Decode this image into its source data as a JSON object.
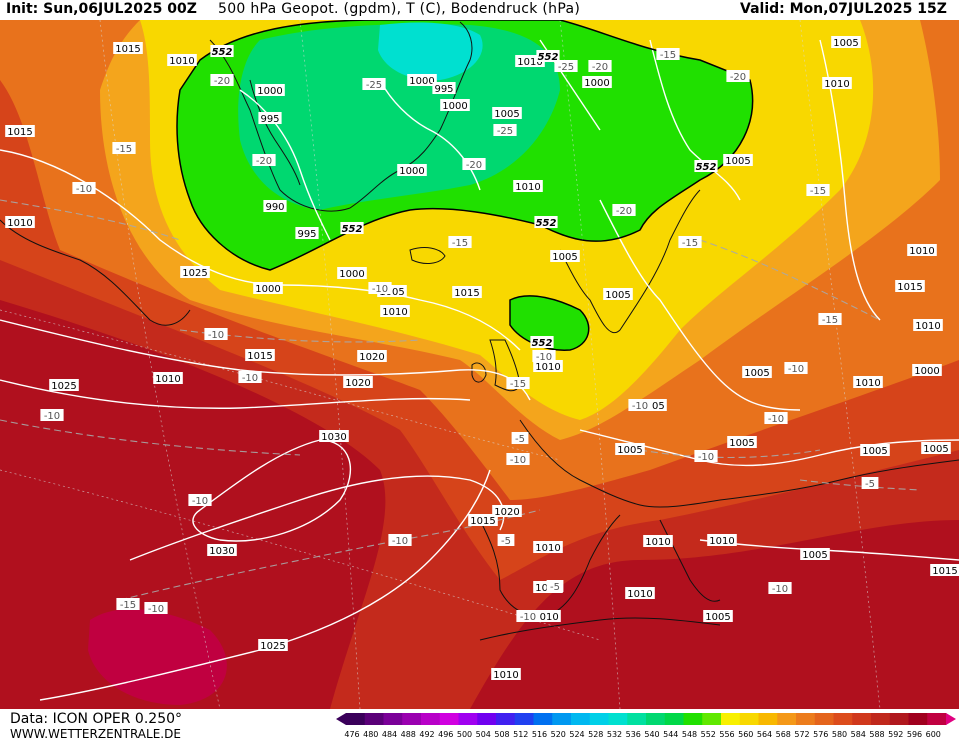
{
  "header": {
    "init": "Init: Sun,06JUL2025 00Z",
    "title": "500 hPa Geopot. (gpdm), T (C), Bodendruck (hPa)",
    "valid": "Valid: Mon,07JUL2025 15Z"
  },
  "footer": {
    "data_source": "Data: ICON OPER 0.250°",
    "website": "WWW.WETTERZENTRALE.DE"
  },
  "colors": {
    "deep_red": "#a0001e",
    "red": "#c0281c",
    "orange_red": "#d8481a",
    "orange": "#e8721c",
    "light_orange": "#f4a51c",
    "yellow": "#f8d800",
    "light_green": "#22e000",
    "cyan": "#00e0d0"
  },
  "legend": {
    "values": [
      "476",
      "480",
      "484",
      "488",
      "492",
      "496",
      "500",
      "504",
      "508",
      "512",
      "516",
      "520",
      "524",
      "528",
      "532",
      "536",
      "540",
      "544",
      "548",
      "552",
      "556",
      "560",
      "564",
      "568",
      "572",
      "576",
      "580",
      "584",
      "588",
      "592",
      "596",
      "600"
    ],
    "colors": [
      "#3a005a",
      "#5a0078",
      "#7a0098",
      "#9a00b0",
      "#b800c8",
      "#d000e0",
      "#a000f0",
      "#7000f0",
      "#4020f0",
      "#2040f0",
      "#0070f0",
      "#0098f0",
      "#00b8f0",
      "#00d0e8",
      "#00e0d0",
      "#00e0a0",
      "#00d870",
      "#00d848",
      "#20e000",
      "#60e800",
      "#f8f000",
      "#f8d800",
      "#f8b800",
      "#f49818",
      "#ec7c1c",
      "#e4641c",
      "#dc4c1c",
      "#d0381c",
      "#c0281c",
      "#b0181e",
      "#a0001e",
      "#c00040"
    ]
  },
  "pressure_labels": [
    "1015",
    "1010",
    "1000",
    "995",
    "1000",
    "995",
    "1000",
    "1005",
    "1010",
    "1000",
    "1005",
    "1010",
    "1005",
    "990",
    "995",
    "1000",
    "1015",
    "1010",
    "1000",
    "1005",
    "1010",
    "1000",
    "1005",
    "1005",
    "1015",
    "1015",
    "1020",
    "1025",
    "1010",
    "1005",
    "1020",
    "1025",
    "1010",
    "1030",
    "1030",
    "1025",
    "1010",
    "1015",
    "1020",
    "1010",
    "1010",
    "1010",
    "1005",
    "1005",
    "1010",
    "1005",
    "1000",
    "1010",
    "1015",
    "1010",
    "1005",
    "1005",
    "1010",
    "1005",
    "1005",
    "1010",
    "1010",
    "1010",
    "1015"
  ],
  "temperature_labels": [
    "-20",
    "-25",
    "-20",
    "-15",
    "-20",
    "-25",
    "-15",
    "-10",
    "-20",
    "-25",
    "-15",
    "-20",
    "-20",
    "-15",
    "-15",
    "-10",
    "-10",
    "-10",
    "-15",
    "-10",
    "-10",
    "-15",
    "-10",
    "-5",
    "-10",
    "-10",
    "-5",
    "-10",
    "-10",
    "-10",
    "-10",
    "-10",
    "-15",
    "-10",
    "-5",
    "-5",
    "-10"
  ],
  "geopotential_labels": [
    "552",
    "552",
    "552",
    "552",
    "552",
    "552"
  ]
}
